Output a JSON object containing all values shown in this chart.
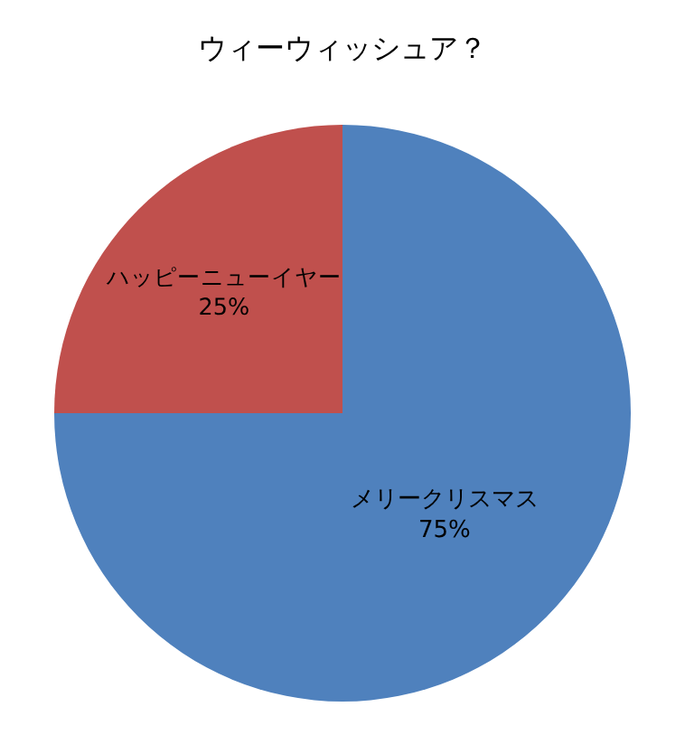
{
  "chart_data": {
    "type": "pie",
    "title": "ウィーウィッシュア？",
    "categories": [
      "メリークリスマス",
      "ハッピーニューイヤー"
    ],
    "values": [
      75,
      25
    ],
    "value_labels": [
      "75%",
      "25%"
    ],
    "colors": [
      "#4f81bd",
      "#c0504d"
    ],
    "legend": false
  }
}
